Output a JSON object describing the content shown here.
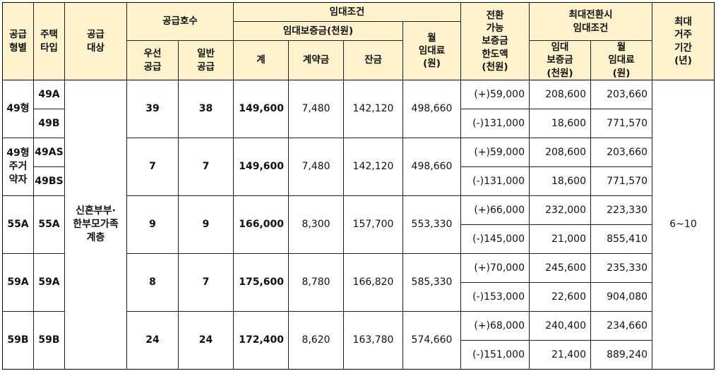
{
  "headers": {
    "supply_type": "공급\n형별",
    "house_type": "주택\n타입",
    "target": "공급\n대상",
    "units": "공급호수",
    "priority": "우선\n공급",
    "general": "일반\n공급",
    "lease_terms": "임대조건",
    "deposit": "임대보증금(천원)",
    "total": "계",
    "contract": "계약금",
    "balance": "잔금",
    "monthly_rent": "월\n임대료\n(원)",
    "convertible": "전환\n가능\n보증금\n한도액\n(천원)",
    "max_conversion": "최대전환시\n임대조건",
    "max_deposit": "임대\n보증금\n(천원)",
    "max_rent": "월\n임대료\n(원)",
    "max_period": "최대\n거주\n기간\n(년)"
  },
  "target_value": "신혼부부·\n한부모가족\n계층",
  "period_value": "6~10",
  "groups": [
    {
      "type": "49형",
      "subtypes": [
        "49A",
        "49B"
      ],
      "priority": "39",
      "general": "38",
      "total": "149,600",
      "contract": "7,480",
      "balance": "142,120",
      "rent": "498,660",
      "conversions": [
        {
          "limit": "(+)59,000",
          "deposit": "208,600",
          "rent": "203,660"
        },
        {
          "limit": "(-)131,000",
          "deposit": "18,600",
          "rent": "771,570"
        }
      ]
    },
    {
      "type": "49형\n주거\n약자",
      "subtypes": [
        "49AS",
        "49BS"
      ],
      "priority": "7",
      "general": "7",
      "total": "149,600",
      "contract": "7,480",
      "balance": "142,120",
      "rent": "498,660",
      "conversions": [
        {
          "limit": "(+)59,000",
          "deposit": "208,600",
          "rent": "203,660"
        },
        {
          "limit": "(-)131,000",
          "deposit": "18,600",
          "rent": "771,570"
        }
      ]
    },
    {
      "type": "55A",
      "subtypes": [
        "55A"
      ],
      "priority": "9",
      "general": "9",
      "total": "166,000",
      "contract": "8,300",
      "balance": "157,700",
      "rent": "553,330",
      "conversions": [
        {
          "limit": "(+)66,000",
          "deposit": "232,000",
          "rent": "223,330"
        },
        {
          "limit": "(-)145,000",
          "deposit": "21,000",
          "rent": "855,410"
        }
      ]
    },
    {
      "type": "59A",
      "subtypes": [
        "59A"
      ],
      "priority": "8",
      "general": "7",
      "total": "175,600",
      "contract": "8,780",
      "balance": "166,820",
      "rent": "585,330",
      "conversions": [
        {
          "limit": "(+)70,000",
          "deposit": "245,600",
          "rent": "235,330"
        },
        {
          "limit": "(-)153,000",
          "deposit": "22,600",
          "rent": "904,080"
        }
      ]
    },
    {
      "type": "59B",
      "subtypes": [
        "59B"
      ],
      "priority": "24",
      "general": "24",
      "total": "172,400",
      "contract": "8,620",
      "balance": "163,780",
      "rent": "574,660",
      "conversions": [
        {
          "limit": "(+)68,000",
          "deposit": "240,400",
          "rent": "234,660"
        },
        {
          "limit": "(-)151,000",
          "deposit": "21,400",
          "rent": "889,240"
        }
      ]
    }
  ]
}
